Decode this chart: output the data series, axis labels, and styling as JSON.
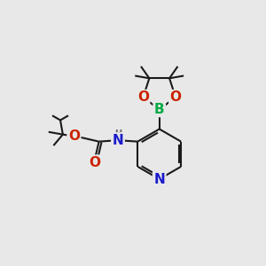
{
  "background_color": "#e8e8e8",
  "bond_color": "#1a1a1a",
  "bond_width": 1.5,
  "atom_colors": {
    "N_blue": "#1a1acc",
    "N_nh": "#666666",
    "O": "#cc2200",
    "B": "#00aa44",
    "C": "#1a1a1a"
  },
  "font_size_N": 11,
  "font_size_NH": 9,
  "font_size_O": 11,
  "font_size_B": 11,
  "figsize": [
    3.0,
    3.0
  ],
  "dpi": 100,
  "xlim": [
    0,
    10
  ],
  "ylim": [
    0,
    10
  ]
}
